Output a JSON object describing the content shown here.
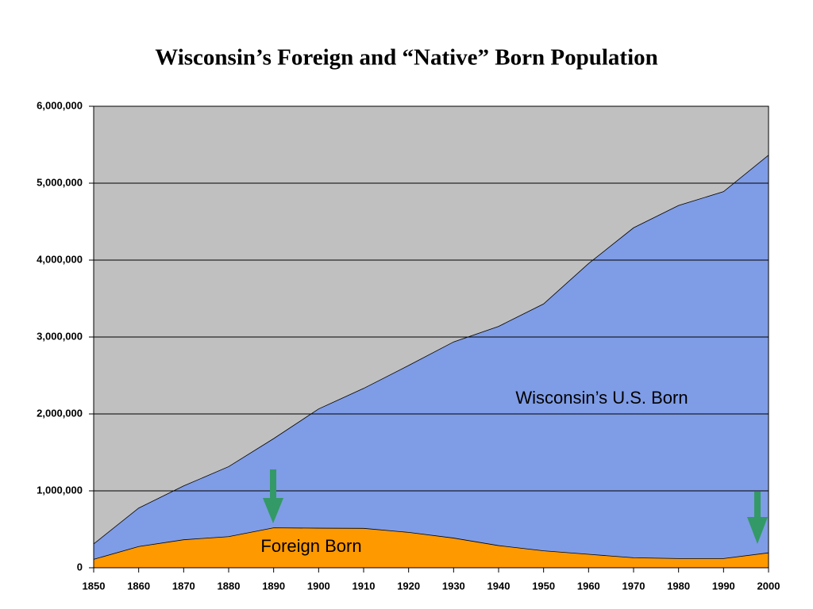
{
  "chart_data": {
    "type": "stacked-area",
    "title": "Wisconsin’s Foreign and “Native” Born Population",
    "x": [
      1850,
      1860,
      1870,
      1880,
      1890,
      1900,
      1910,
      1920,
      1930,
      1940,
      1950,
      1960,
      1970,
      1980,
      1990,
      2000
    ],
    "xlim": [
      1850,
      2000
    ],
    "xticks": [
      1850,
      1860,
      1870,
      1880,
      1890,
      1900,
      1910,
      1920,
      1930,
      1940,
      1950,
      1960,
      1970,
      1980,
      1990,
      2000
    ],
    "ylim": [
      0,
      6000000
    ],
    "yticks": [
      0,
      {
        "value": 1000000,
        "label": "1,000,000"
      },
      {
        "value": 2000000,
        "label": "2,000,000"
      },
      {
        "value": 3000000,
        "label": "3,000,000"
      },
      {
        "value": 4000000,
        "label": "4,000,000"
      },
      {
        "value": 5000000,
        "label": "5,000,000"
      },
      {
        "value": 6000000,
        "label": "6,000,000"
      }
    ],
    "grid": true,
    "plot_background": "#c0c0c0",
    "series": [
      {
        "name": "Foreign Born",
        "color": "#ff9900",
        "values": [
          110000,
          276000,
          364000,
          405000,
          519000,
          515000,
          512000,
          460000,
          386000,
          288000,
          220000,
          175000,
          130000,
          120000,
          120000,
          194000
        ]
      },
      {
        "name": "Wisconsin’s U.S. Born",
        "color": "#7f9ce6",
        "values": [
          200000,
          500000,
          700000,
          910000,
          1160000,
          1550000,
          1820000,
          2170000,
          2550000,
          2850000,
          3210000,
          3780000,
          4290000,
          4590000,
          4770000,
          5170000
        ]
      }
    ]
  }
}
